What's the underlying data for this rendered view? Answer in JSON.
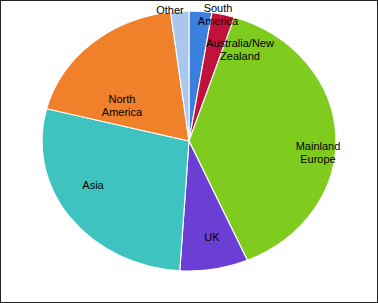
{
  "chart_data": {
    "type": "pie",
    "categories": [
      "South America",
      "Australia/New Zealand",
      "Mainland Europe",
      "UK",
      "Asia",
      "North America",
      "Other"
    ],
    "values": [
      2.5,
      2.5,
      38.5,
      7.5,
      28,
      19,
      2
    ],
    "colors": [
      "#3b7fdf",
      "#c2123b",
      "#80cc1e",
      "#6b3fd4",
      "#3ec3c1",
      "#f0802a",
      "#a9c6ee"
    ]
  }
}
